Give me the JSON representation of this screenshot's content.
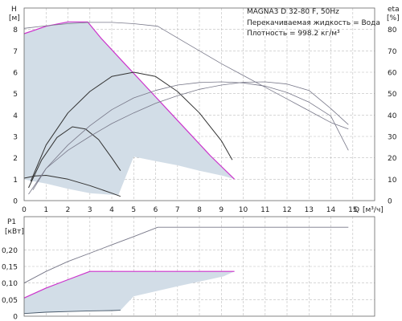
{
  "chart_data": [
    {
      "type": "line",
      "panel": "performance",
      "title": "MAGNA3 D 32-80 F, 50Hz",
      "info": [
        "Перекачиваемая жидкость = Вода",
        "Плотность = 998.2 кг/м³"
      ],
      "ylabel": "H",
      "yunit": "[м]",
      "y2label": "eta",
      "y2unit": "[%]",
      "xlabel": "Q",
      "xunit": "[м³/ч]",
      "xlim": [
        0,
        16
      ],
      "ylim": [
        0,
        9
      ],
      "y2lim": [
        0,
        90
      ],
      "xticks": [
        0,
        1,
        2,
        3,
        4,
        5,
        6,
        7,
        8,
        9,
        10,
        11,
        12,
        13,
        14,
        15
      ],
      "yticks": [
        0,
        1,
        2,
        3,
        4,
        5,
        6,
        7,
        8
      ],
      "y2ticks": [
        0,
        10,
        20,
        30,
        40,
        50,
        60,
        70,
        80
      ],
      "grid": true,
      "colors": {
        "envelope": "#d2dde7",
        "max_curve": "#cc33cc",
        "head": "#333333",
        "eff": "#777788"
      },
      "area": {
        "x": [
          0,
          1,
          2,
          2.9,
          3.5,
          4.5,
          5.5,
          6.5,
          7.5,
          8.5,
          9.6,
          9.1,
          8.0,
          7.0,
          6.0,
          5.0,
          4.3,
          3.0,
          2.0,
          1.0,
          0.2,
          0
        ],
        "y": [
          7.8,
          8.15,
          8.35,
          8.35,
          7.6,
          6.5,
          5.4,
          4.3,
          3.2,
          2.1,
          1.0,
          1.15,
          1.4,
          1.65,
          1.85,
          2.05,
          0.25,
          0.35,
          0.55,
          0.8,
          0.95,
          1.0
        ]
      },
      "series": [
        {
          "kind": "max",
          "axis": "y",
          "x": [
            0,
            1,
            2,
            2.9,
            3.5,
            4.5,
            5.5,
            6.5,
            7.5,
            8.5,
            9.6
          ],
          "y": [
            7.8,
            8.15,
            8.35,
            8.35,
            7.6,
            6.5,
            5.4,
            4.3,
            3.2,
            2.1,
            1.0
          ]
        },
        {
          "kind": "head",
          "axis": "y",
          "x": [
            0.3,
            1,
            2,
            3,
            4,
            5,
            6,
            7,
            8,
            9,
            9.5
          ],
          "y": [
            0.9,
            2.6,
            4.1,
            5.1,
            5.8,
            6.0,
            5.8,
            5.1,
            4.1,
            2.8,
            1.9
          ]
        },
        {
          "kind": "head",
          "axis": "y",
          "x": [
            0.2,
            0.8,
            1.5,
            2.2,
            2.8,
            3.4,
            4.0,
            4.4
          ],
          "y": [
            0.6,
            1.9,
            2.95,
            3.45,
            3.35,
            2.85,
            2.0,
            1.4
          ]
        },
        {
          "kind": "head",
          "axis": "y",
          "x": [
            0,
            0.5,
            1,
            2,
            3,
            4,
            4.4
          ],
          "y": [
            1.05,
            1.15,
            1.18,
            1.0,
            0.7,
            0.35,
            0.2
          ]
        },
        {
          "kind": "eff",
          "axis": "y2",
          "x": [
            0,
            1,
            2,
            3,
            4,
            5,
            6.1,
            7,
            8,
            9,
            10,
            11,
            12,
            13,
            14,
            14.8
          ],
          "y": [
            80.5,
            81.7,
            82.7,
            83.3,
            83.3,
            82.7,
            81.5,
            76,
            70,
            64,
            58.5,
            53,
            47.5,
            42,
            36.5,
            33.5
          ]
        },
        {
          "kind": "eff",
          "axis": "y2",
          "x": [
            0.4,
            1,
            2,
            3,
            4,
            5,
            6,
            7,
            8,
            9,
            10,
            11,
            12,
            13,
            14,
            14.8
          ],
          "y": [
            5,
            15,
            23.5,
            30,
            36,
            41,
            45.5,
            49,
            52,
            54,
            55.3,
            55.5,
            54.5,
            51.5,
            43,
            35.5
          ]
        },
        {
          "kind": "eff",
          "axis": "y2",
          "x": [
            0.2,
            1,
            2,
            3,
            4,
            5,
            6,
            7,
            8,
            9,
            10,
            11,
            12,
            13,
            14,
            14.8
          ],
          "y": [
            3,
            15,
            26,
            35,
            42.5,
            48,
            51.5,
            54,
            55.2,
            55.5,
            55,
            53.5,
            50.5,
            46,
            39.5,
            23.5
          ]
        }
      ]
    },
    {
      "type": "line",
      "panel": "power",
      "ylabel": "P1",
      "yunit": "[кВт]",
      "xlim": [
        0,
        16
      ],
      "ylim": [
        0,
        0.3
      ],
      "yticks": [
        0,
        0.05,
        0.1,
        0.15,
        0.2
      ],
      "ytick_labels": [
        "0",
        "0,05",
        "0,10",
        "0,15",
        "0,20"
      ],
      "grid": true,
      "area": {
        "x": [
          0,
          1,
          2,
          3,
          5,
          7,
          9,
          9.6,
          9.1,
          7,
          5,
          4.4,
          3,
          2,
          1,
          0
        ],
        "y": [
          0.055,
          0.085,
          0.11,
          0.135,
          0.135,
          0.135,
          0.135,
          0.135,
          0.12,
          0.09,
          0.06,
          0.018,
          0.016,
          0.014,
          0.012,
          0.008
        ]
      },
      "series": [
        {
          "kind": "max",
          "x": [
            0,
            1,
            2,
            3,
            5,
            7,
            9,
            9.6
          ],
          "y": [
            0.055,
            0.085,
            0.11,
            0.135,
            0.135,
            0.135,
            0.135,
            0.135
          ]
        },
        {
          "kind": "power",
          "x": [
            0,
            1,
            2,
            3,
            4,
            5,
            6.1,
            8,
            10,
            12,
            14,
            14.8
          ],
          "y": [
            0.1,
            0.135,
            0.165,
            0.19,
            0.215,
            0.24,
            0.268,
            0.268,
            0.268,
            0.268,
            0.268,
            0.268
          ]
        },
        {
          "kind": "power-low",
          "x": [
            0,
            1,
            2,
            3,
            4,
            4.4
          ],
          "y": [
            0.008,
            0.012,
            0.014,
            0.016,
            0.017,
            0.018
          ]
        }
      ]
    }
  ]
}
